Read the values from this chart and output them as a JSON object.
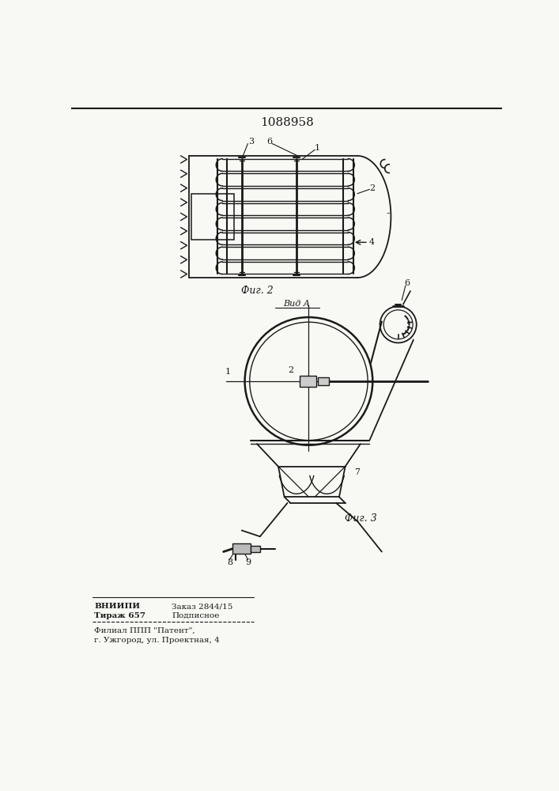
{
  "patent_number": "1088958",
  "fig2_label": "Фиг. 2",
  "fig3_label": "Фиг. 3",
  "view_label": "Вид А",
  "footer_line1_col1": "ВНИИПИ",
  "footer_line1_col2": "Заказ 2844/15",
  "footer_line2_col1": "Тираж 657",
  "footer_line2_col2": "Подписное",
  "footer_line3": "Филиал ППП \"Патент\",",
  "footer_line4": "г. Ужгород, ул. Проектная, 4",
  "bg_color": "#f8f8f5",
  "line_color": "#1a1a1a"
}
